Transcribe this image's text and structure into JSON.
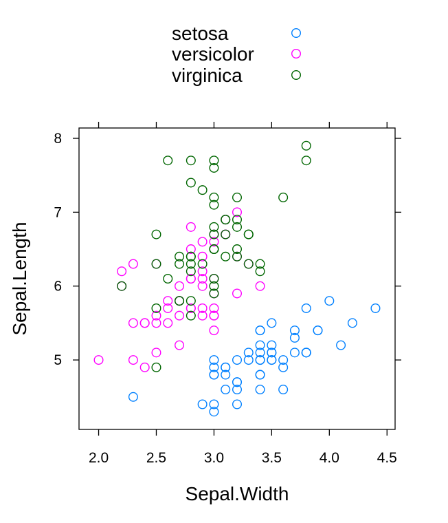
{
  "chart_data": {
    "type": "scatter",
    "xlabel": "Sepal.Width",
    "ylabel": "Sepal.Length",
    "xlim": [
      1.83,
      4.57
    ],
    "ylim": [
      4.06,
      8.14
    ],
    "xticks": [
      "2.0",
      "2.5",
      "3.0",
      "3.5",
      "4.0",
      "4.5"
    ],
    "yticks": [
      "5",
      "6",
      "7",
      "8"
    ],
    "legend_position": "top",
    "series": [
      {
        "name": "setosa",
        "color": "#0080ff",
        "points": [
          [
            3.5,
            5.1
          ],
          [
            3.0,
            4.9
          ],
          [
            3.2,
            4.7
          ],
          [
            3.1,
            4.6
          ],
          [
            3.6,
            5.0
          ],
          [
            3.9,
            5.4
          ],
          [
            3.4,
            4.6
          ],
          [
            3.4,
            5.0
          ],
          [
            2.9,
            4.4
          ],
          [
            3.1,
            4.9
          ],
          [
            3.7,
            5.4
          ],
          [
            3.4,
            4.8
          ],
          [
            3.0,
            4.8
          ],
          [
            3.0,
            4.3
          ],
          [
            4.0,
            5.8
          ],
          [
            4.4,
            5.7
          ],
          [
            3.9,
            5.4
          ],
          [
            3.5,
            5.1
          ],
          [
            3.8,
            5.7
          ],
          [
            3.8,
            5.1
          ],
          [
            3.4,
            5.4
          ],
          [
            3.7,
            5.1
          ],
          [
            3.6,
            4.6
          ],
          [
            3.3,
            5.1
          ],
          [
            3.4,
            4.8
          ],
          [
            3.0,
            5.0
          ],
          [
            3.4,
            5.0
          ],
          [
            3.5,
            5.2
          ],
          [
            3.4,
            5.2
          ],
          [
            3.2,
            4.7
          ],
          [
            3.1,
            4.8
          ],
          [
            3.4,
            5.4
          ],
          [
            4.1,
            5.2
          ],
          [
            4.2,
            5.5
          ],
          [
            3.1,
            4.9
          ],
          [
            3.2,
            5.0
          ],
          [
            3.5,
            5.5
          ],
          [
            3.6,
            4.9
          ],
          [
            3.0,
            4.4
          ],
          [
            3.4,
            5.1
          ],
          [
            3.5,
            5.0
          ],
          [
            2.3,
            4.5
          ],
          [
            3.2,
            4.4
          ],
          [
            3.5,
            5.0
          ],
          [
            3.8,
            5.1
          ],
          [
            3.0,
            4.8
          ],
          [
            3.8,
            5.1
          ],
          [
            3.2,
            4.6
          ],
          [
            3.7,
            5.3
          ],
          [
            3.3,
            5.0
          ]
        ]
      },
      {
        "name": "versicolor",
        "color": "#ff00ff",
        "points": [
          [
            3.2,
            7.0
          ],
          [
            3.2,
            6.4
          ],
          [
            3.1,
            6.9
          ],
          [
            2.3,
            5.5
          ],
          [
            2.8,
            6.5
          ],
          [
            2.8,
            5.7
          ],
          [
            3.3,
            6.3
          ],
          [
            2.4,
            4.9
          ],
          [
            2.9,
            6.6
          ],
          [
            2.7,
            5.2
          ],
          [
            2.0,
            5.0
          ],
          [
            3.0,
            5.9
          ],
          [
            2.2,
            6.0
          ],
          [
            2.9,
            6.1
          ],
          [
            2.9,
            5.6
          ],
          [
            3.1,
            6.7
          ],
          [
            3.0,
            5.6
          ],
          [
            2.7,
            5.8
          ],
          [
            2.2,
            6.2
          ],
          [
            2.5,
            5.6
          ],
          [
            3.2,
            5.9
          ],
          [
            2.8,
            6.1
          ],
          [
            2.5,
            6.3
          ],
          [
            2.8,
            6.1
          ],
          [
            2.9,
            6.4
          ],
          [
            3.0,
            6.6
          ],
          [
            2.8,
            6.8
          ],
          [
            3.0,
            6.7
          ],
          [
            2.9,
            6.0
          ],
          [
            2.6,
            5.7
          ],
          [
            2.4,
            5.5
          ],
          [
            2.4,
            5.5
          ],
          [
            2.7,
            5.8
          ],
          [
            2.7,
            6.0
          ],
          [
            3.0,
            5.4
          ],
          [
            3.4,
            6.0
          ],
          [
            3.1,
            6.7
          ],
          [
            2.3,
            6.3
          ],
          [
            3.0,
            5.6
          ],
          [
            2.5,
            5.5
          ],
          [
            2.6,
            5.5
          ],
          [
            3.0,
            6.1
          ],
          [
            2.6,
            5.8
          ],
          [
            2.3,
            5.0
          ],
          [
            2.7,
            5.6
          ],
          [
            3.0,
            5.7
          ],
          [
            2.9,
            5.7
          ],
          [
            2.9,
            6.2
          ],
          [
            2.5,
            5.1
          ],
          [
            2.8,
            5.7
          ]
        ]
      },
      {
        "name": "virginica",
        "color": "#006600",
        "points": [
          [
            3.3,
            6.3
          ],
          [
            2.7,
            5.8
          ],
          [
            3.0,
            7.1
          ],
          [
            2.9,
            6.3
          ],
          [
            3.0,
            6.5
          ],
          [
            3.0,
            7.6
          ],
          [
            2.5,
            4.9
          ],
          [
            2.9,
            7.3
          ],
          [
            2.5,
            6.7
          ],
          [
            3.6,
            7.2
          ],
          [
            3.2,
            6.5
          ],
          [
            2.7,
            6.4
          ],
          [
            3.0,
            6.8
          ],
          [
            2.5,
            5.7
          ],
          [
            2.8,
            5.8
          ],
          [
            3.2,
            6.4
          ],
          [
            3.0,
            6.5
          ],
          [
            3.8,
            7.7
          ],
          [
            2.6,
            7.7
          ],
          [
            2.2,
            6.0
          ],
          [
            3.2,
            6.9
          ],
          [
            2.8,
            5.6
          ],
          [
            2.8,
            7.7
          ],
          [
            2.7,
            6.3
          ],
          [
            3.3,
            6.7
          ],
          [
            3.2,
            7.2
          ],
          [
            2.8,
            6.2
          ],
          [
            3.0,
            6.1
          ],
          [
            2.8,
            6.4
          ],
          [
            3.0,
            7.2
          ],
          [
            2.8,
            7.4
          ],
          [
            3.8,
            7.9
          ],
          [
            2.8,
            6.4
          ],
          [
            2.8,
            6.3
          ],
          [
            2.6,
            6.1
          ],
          [
            3.0,
            7.7
          ],
          [
            3.4,
            6.3
          ],
          [
            3.1,
            6.4
          ],
          [
            3.0,
            6.0
          ],
          [
            3.1,
            6.9
          ],
          [
            3.1,
            6.7
          ],
          [
            3.1,
            6.9
          ],
          [
            2.7,
            5.8
          ],
          [
            3.2,
            6.8
          ],
          [
            3.3,
            6.7
          ],
          [
            3.0,
            6.7
          ],
          [
            2.5,
            6.3
          ],
          [
            3.0,
            6.5
          ],
          [
            3.4,
            6.2
          ],
          [
            3.0,
            5.9
          ]
        ]
      }
    ]
  }
}
